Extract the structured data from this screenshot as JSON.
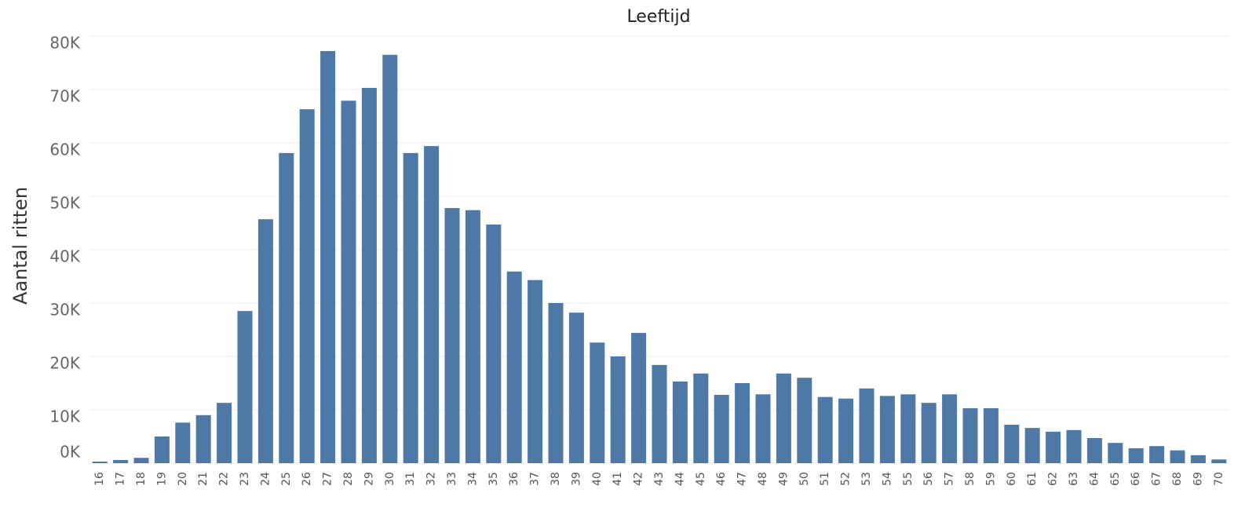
{
  "chart_data": {
    "type": "bar",
    "title": "Leeftijd",
    "y_label": "Aantal ritten",
    "categories": [
      "16",
      "17",
      "18",
      "19",
      "20",
      "21",
      "22",
      "23",
      "24",
      "25",
      "26",
      "27",
      "28",
      "29",
      "30",
      "31",
      "32",
      "33",
      "34",
      "35",
      "36",
      "37",
      "38",
      "39",
      "40",
      "41",
      "42",
      "43",
      "44",
      "45",
      "46",
      "47",
      "48",
      "49",
      "50",
      "51",
      "52",
      "53",
      "54",
      "55",
      "56",
      "57",
      "58",
      "59",
      "60",
      "61",
      "62",
      "63",
      "64",
      "65",
      "66",
      "67",
      "68",
      "69",
      "70"
    ],
    "values": [
      300,
      600,
      1000,
      5000,
      7600,
      9000,
      11300,
      28500,
      45700,
      58100,
      66300,
      77200,
      67900,
      70300,
      76500,
      58100,
      59400,
      47800,
      47400,
      44700,
      35900,
      34300,
      30000,
      28200,
      22600,
      20000,
      24400,
      18400,
      15300,
      16800,
      12800,
      15000,
      12900,
      16800,
      16000,
      12400,
      12100,
      14000,
      12600,
      12900,
      11300,
      12900,
      10300,
      10300,
      7200,
      6600,
      5900,
      6200,
      4700,
      3800,
      2800,
      3200,
      2400,
      1500,
      700
    ],
    "color": "#4e79a7",
    "ylim": [
      0,
      80000
    ],
    "yticks": [
      {
        "value": 0,
        "label": "0K"
      },
      {
        "value": 10000,
        "label": "10K"
      },
      {
        "value": 20000,
        "label": "20K"
      },
      {
        "value": 30000,
        "label": "30K"
      },
      {
        "value": 40000,
        "label": "40K"
      },
      {
        "value": 50000,
        "label": "50K"
      },
      {
        "value": 60000,
        "label": "60K"
      },
      {
        "value": 70000,
        "label": "70K"
      },
      {
        "value": 80000,
        "label": "80K"
      }
    ],
    "grid": true
  }
}
